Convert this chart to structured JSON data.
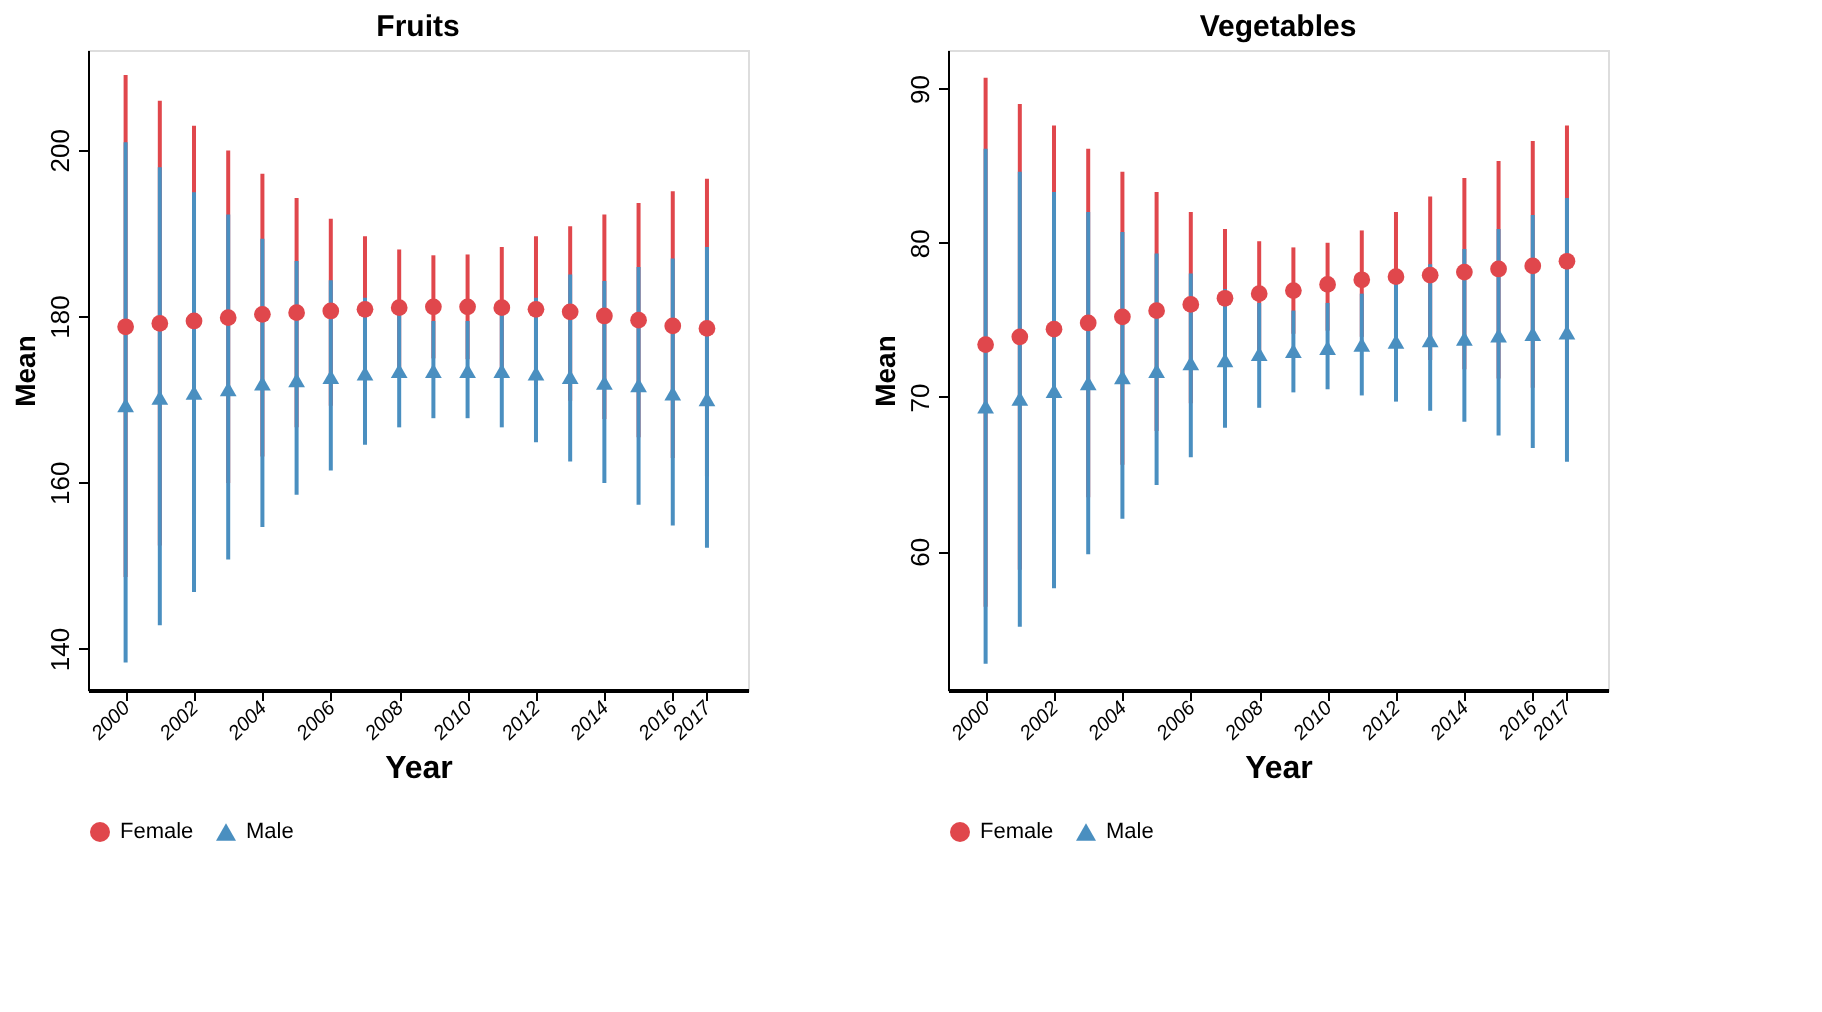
{
  "chart_data": [
    {
      "type": "scatter",
      "title": "Fruits",
      "xlabel": "Year",
      "ylabel": "Mean",
      "legend": "bottom",
      "grid": false,
      "x": [
        2000,
        2001,
        2002,
        2003,
        2004,
        2005,
        2006,
        2007,
        2008,
        2009,
        2010,
        2011,
        2012,
        2013,
        2014,
        2015,
        2016,
        2017
      ],
      "xlim": [
        1998.9,
        2018.2
      ],
      "xticks": [
        2000,
        2002,
        2004,
        2006,
        2008,
        2010,
        2012,
        2014,
        2016,
        2017
      ],
      "ylim": [
        135,
        212
      ],
      "yticks": [
        140,
        160,
        180,
        200
      ],
      "series": [
        {
          "name": "Female",
          "color": "#e0474c",
          "marker": "circle",
          "values": [
            178.7,
            179.1,
            179.4,
            179.8,
            180.2,
            180.4,
            180.6,
            180.8,
            181.0,
            181.1,
            181.1,
            181.0,
            180.8,
            180.5,
            180.0,
            179.5,
            178.8,
            178.5
          ],
          "errors": [
            [
              148.6,
              209.0
            ],
            [
              152.4,
              205.9
            ],
            [
              156.1,
              202.9
            ],
            [
              159.9,
              199.9
            ],
            [
              163.1,
              197.1
            ],
            [
              166.6,
              194.2
            ],
            [
              169.2,
              191.7
            ],
            [
              171.7,
              189.6
            ],
            [
              173.8,
              188.0
            ],
            [
              174.9,
              187.3
            ],
            [
              174.8,
              187.4
            ],
            [
              173.7,
              188.3
            ],
            [
              171.7,
              189.6
            ],
            [
              169.8,
              190.8
            ],
            [
              167.6,
              192.2
            ],
            [
              165.4,
              193.6
            ],
            [
              162.9,
              195.0
            ],
            [
              160.7,
              196.5
            ]
          ]
        },
        {
          "name": "Male",
          "color": "#4a8fc0",
          "marker": "triangle",
          "values": [
            169.3,
            170.2,
            170.8,
            171.2,
            171.9,
            172.3,
            172.7,
            173.1,
            173.4,
            173.4,
            173.4,
            173.4,
            173.1,
            172.7,
            172.0,
            171.7,
            170.7,
            170.0
          ],
          "errors": [
            [
              138.3,
              200.9
            ],
            [
              142.8,
              197.9
            ],
            [
              146.8,
              194.9
            ],
            [
              150.7,
              192.2
            ],
            [
              154.6,
              189.3
            ],
            [
              158.5,
              186.6
            ],
            [
              161.4,
              184.3
            ],
            [
              164.5,
              182.2
            ],
            [
              166.6,
              180.5
            ],
            [
              167.7,
              179.4
            ],
            [
              167.7,
              179.4
            ],
            [
              166.6,
              180.5
            ],
            [
              164.8,
              182.2
            ],
            [
              162.5,
              185.0
            ],
            [
              159.9,
              184.2
            ],
            [
              157.3,
              185.9
            ],
            [
              154.8,
              186.9
            ],
            [
              152.1,
              188.3
            ]
          ]
        }
      ]
    },
    {
      "type": "scatter",
      "title": "Vegetables",
      "xlabel": "Year",
      "ylabel": "Mean",
      "legend": "bottom",
      "grid": false,
      "x": [
        2000,
        2001,
        2002,
        2003,
        2004,
        2005,
        2006,
        2007,
        2008,
        2009,
        2010,
        2011,
        2012,
        2013,
        2014,
        2015,
        2016,
        2017
      ],
      "xlim": [
        1998.9,
        2018.2
      ],
      "xticks": [
        2000,
        2002,
        2004,
        2006,
        2008,
        2010,
        2012,
        2014,
        2016,
        2017
      ],
      "ylim": [
        51,
        92.5
      ],
      "yticks": [
        60,
        70,
        80,
        90
      ],
      "series": [
        {
          "name": "Female",
          "color": "#e0474c",
          "marker": "circle",
          "values": [
            73.4,
            73.9,
            74.4,
            74.8,
            75.2,
            75.6,
            76.0,
            76.4,
            76.7,
            76.9,
            77.3,
            77.6,
            77.8,
            77.9,
            78.1,
            78.3,
            78.5,
            78.8
          ],
          "errors": [
            [
              56.4,
              90.7
            ],
            [
              58.8,
              89.0
            ],
            [
              61.1,
              87.6
            ],
            [
              63.5,
              86.1
            ],
            [
              65.6,
              84.6
            ],
            [
              67.8,
              83.3
            ],
            [
              69.6,
              82.0
            ],
            [
              71.5,
              80.9
            ],
            [
              72.9,
              80.1
            ],
            [
              74.1,
              79.7
            ],
            [
              74.3,
              80.0
            ],
            [
              73.9,
              80.8
            ],
            [
              73.0,
              82.0
            ],
            [
              72.4,
              83.0
            ],
            [
              71.8,
              84.2
            ],
            [
              71.2,
              85.3
            ],
            [
              70.6,
              86.6
            ],
            [
              69.8,
              87.6
            ]
          ]
        },
        {
          "name": "Male",
          "color": "#4a8fc0",
          "marker": "triangle",
          "values": [
            69.4,
            69.9,
            70.4,
            70.9,
            71.3,
            71.7,
            72.2,
            72.4,
            72.8,
            73.0,
            73.2,
            73.4,
            73.6,
            73.7,
            73.8,
            74.0,
            74.1,
            74.2
          ],
          "errors": [
            [
              52.7,
              86.1
            ],
            [
              55.1,
              84.6
            ],
            [
              57.6,
              83.3
            ],
            [
              59.8,
              82.0
            ],
            [
              62.1,
              80.7
            ],
            [
              64.3,
              79.3
            ],
            [
              66.1,
              78.0
            ],
            [
              68.0,
              77.0
            ],
            [
              69.3,
              76.1
            ],
            [
              70.3,
              75.6
            ],
            [
              70.5,
              76.1
            ],
            [
              70.1,
              76.7
            ],
            [
              69.7,
              77.7
            ],
            [
              69.1,
              78.6
            ],
            [
              68.4,
              79.6
            ],
            [
              67.5,
              80.9
            ],
            [
              66.7,
              81.8
            ],
            [
              65.8,
              82.9
            ]
          ]
        }
      ]
    }
  ]
}
